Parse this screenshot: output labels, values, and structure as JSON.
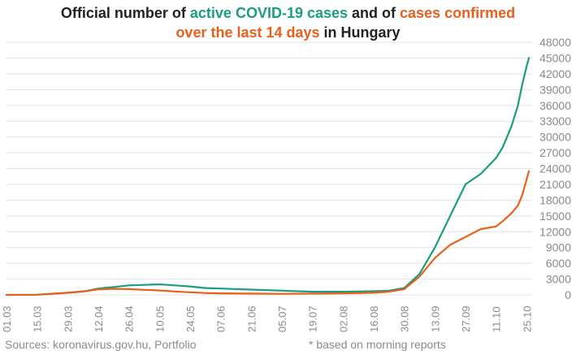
{
  "title": {
    "part1": "Official number of ",
    "part2": "active COVID-19 cases",
    "part3": " and of ",
    "part4": "cases confirmed",
    "part5": "over the last 14 days",
    "part6": " in Hungary"
  },
  "footer": {
    "sources": "Sources: koronavirus.gov.hu, Portfolio",
    "note": "* based on morning reports"
  },
  "colors": {
    "active": "#1a9e7f",
    "confirmed14": "#e8601c",
    "grid": "#e3e3e3",
    "ticks": "#8a8a8a"
  },
  "chart_data": {
    "type": "line",
    "grid": "horizontal",
    "y_axis_side": "right",
    "ylim": [
      0,
      48000
    ],
    "yticks": [
      0,
      3000,
      6000,
      9000,
      12000,
      15000,
      18000,
      21000,
      24000,
      27000,
      30000,
      33000,
      36000,
      39000,
      42000,
      45000,
      48000
    ],
    "xtick_labels": [
      "01.03",
      "15.03",
      "29.03",
      "12.04",
      "26.04",
      "10.05",
      "24.05",
      "07.06",
      "21.06",
      "05.07",
      "19.07",
      "02.08",
      "16.08",
      "30.08",
      "13.09",
      "27.09",
      "11.10",
      "25.10"
    ],
    "x_start": "01.03",
    "x_unit": "day",
    "x": [
      "01.03",
      "15.03",
      "29.03",
      "06.04",
      "12.04",
      "19.04",
      "26.04",
      "03.05",
      "10.05",
      "17.05",
      "24.05",
      "31.05",
      "07.06",
      "21.06",
      "05.07",
      "19.07",
      "02.08",
      "16.08",
      "23.08",
      "30.08",
      "06.09",
      "13.09",
      "20.09",
      "27.09",
      "04.10",
      "11.10",
      "14.10",
      "18.10",
      "21.10",
      "23.10",
      "25.10",
      "26.10"
    ],
    "series": [
      {
        "name": "active COVID-19 cases",
        "color": "#1a9e7f",
        "values": [
          0,
          30,
          400,
          700,
          1200,
          1500,
          1800,
          1900,
          2000,
          1800,
          1600,
          1300,
          1200,
          1000,
          800,
          600,
          600,
          700,
          800,
          1300,
          4000,
          9000,
          15000,
          21000,
          23000,
          26000,
          28000,
          32000,
          36000,
          40000,
          43500,
          45000
        ]
      },
      {
        "name": "cases confirmed over the last 14 days",
        "color": "#e8601c",
        "values": [
          0,
          30,
          400,
          700,
          1050,
          1150,
          1100,
          950,
          850,
          650,
          500,
          350,
          300,
          250,
          200,
          250,
          300,
          400,
          600,
          1100,
          3500,
          7000,
          9500,
          11000,
          12500,
          13000,
          14000,
          15500,
          17000,
          19000,
          22000,
          23500
        ]
      }
    ]
  }
}
